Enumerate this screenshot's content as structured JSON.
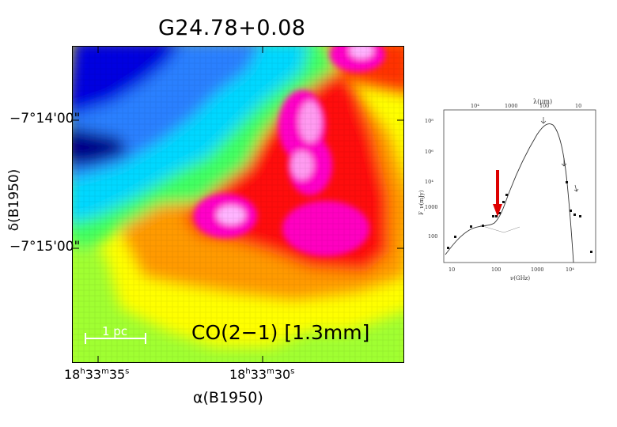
{
  "title": "G24.78+0.08",
  "map": {
    "y_axis_label": "δ(B1950)",
    "y_ticks": [
      "−7°14'00\"",
      "−7°15'00\""
    ],
    "x_axis_label": "α(B1950)",
    "x_ticks": [
      {
        "h": "18",
        "m": "33",
        "s": "35"
      },
      {
        "h": "18",
        "m": "33",
        "s": "30"
      }
    ],
    "scale_bar_label": "1 pc",
    "line_label": "CO(2−1)  [1.3mm]",
    "colormap": [
      "#00008b",
      "#0000ff",
      "#00c8ff",
      "#00ff80",
      "#ffff00",
      "#ff8c00",
      "#ff0000",
      "#ff00c8",
      "#ffb4ff"
    ]
  },
  "sed": {
    "top_axis_label": "λ(μm)",
    "top_ticks": [
      "10⁴",
      "1000",
      "100",
      "10"
    ],
    "bottom_axis_label": "ν(GHz)",
    "bottom_ticks": [
      "10",
      "100",
      "1000",
      "10⁴"
    ],
    "y_axis_label": "F_ν(mJy)",
    "y_ticks": [
      "10⁸",
      "10⁶",
      "10⁴",
      "1000",
      "100"
    ],
    "marker_color": "#dd0000"
  }
}
